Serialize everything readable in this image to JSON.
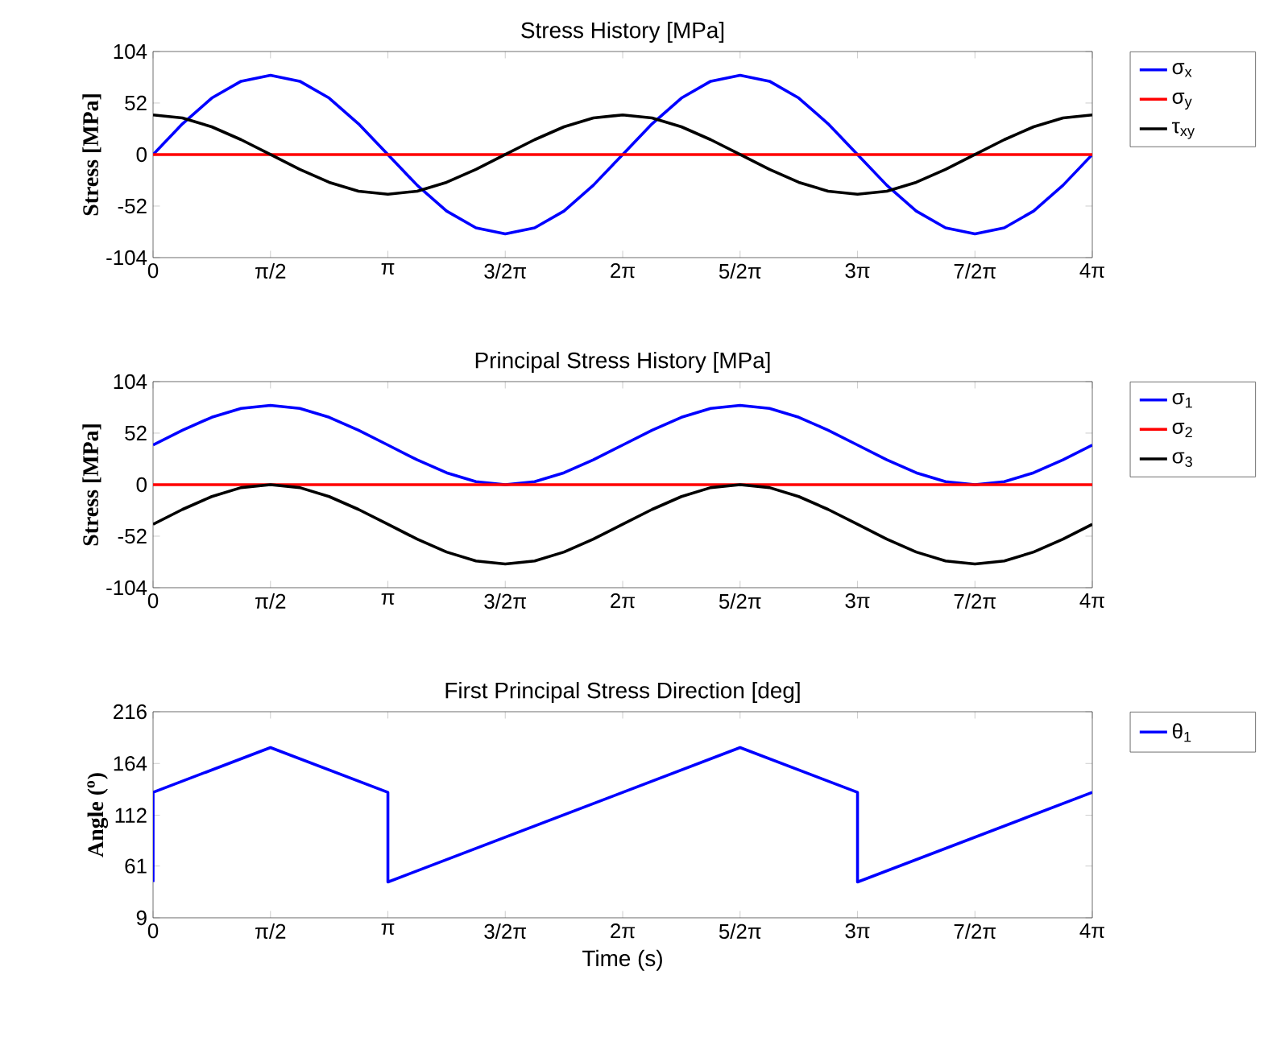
{
  "chart_data": [
    {
      "type": "line",
      "title": "Stress History [MPa]",
      "ylabel": "Stress [MPa]",
      "xlim": [
        0,
        12.566
      ],
      "ylim": [
        -104,
        104
      ],
      "yticks": [
        -104,
        -52,
        0,
        52,
        104
      ],
      "xticks": [
        {
          "value": 0,
          "label": "0"
        },
        {
          "value": 1.571,
          "label": "π/2"
        },
        {
          "value": 3.142,
          "label": "π"
        },
        {
          "value": 4.712,
          "label": "3/2π"
        },
        {
          "value": 6.283,
          "label": "2π"
        },
        {
          "value": 7.854,
          "label": "5/2π"
        },
        {
          "value": 9.425,
          "label": "3π"
        },
        {
          "value": 10.996,
          "label": "7/2π"
        },
        {
          "value": 12.566,
          "label": "4π"
        }
      ],
      "legend": "right",
      "grid": false,
      "series": [
        {
          "name": "σ$_{x}$",
          "color": "#0000ff",
          "x": [
            0,
            0.393,
            0.785,
            1.178,
            1.571,
            1.963,
            2.356,
            2.749,
            3.142,
            3.534,
            3.927,
            4.32,
            4.712,
            5.105,
            5.498,
            5.89,
            6.283,
            6.676,
            7.069,
            7.461,
            7.854,
            8.247,
            8.639,
            9.032,
            9.425,
            9.817,
            10.21,
            10.603,
            10.996,
            11.388,
            11.781,
            12.174,
            12.566
          ],
          "values": [
            0,
            31,
            57,
            74,
            80,
            74,
            57,
            31,
            0,
            -31,
            -57,
            -74,
            -80,
            -74,
            -57,
            -31,
            0,
            31,
            57,
            74,
            80,
            74,
            57,
            31,
            0,
            -31,
            -57,
            -74,
            -80,
            -74,
            -57,
            -31,
            0
          ]
        },
        {
          "name": "σ$_{y}$",
          "color": "#ff0000",
          "x": [
            0,
            12.566
          ],
          "values": [
            0,
            0
          ]
        },
        {
          "name": "τ$_{xy}$",
          "color": "#000000",
          "x": [
            0,
            0.393,
            0.785,
            1.178,
            1.571,
            1.963,
            2.356,
            2.749,
            3.142,
            3.534,
            3.927,
            4.32,
            4.712,
            5.105,
            5.498,
            5.89,
            6.283,
            6.676,
            7.069,
            7.461,
            7.854,
            8.247,
            8.639,
            9.032,
            9.425,
            9.817,
            10.21,
            10.603,
            10.996,
            11.388,
            11.781,
            12.174,
            12.566
          ],
          "values": [
            40,
            37,
            28,
            15,
            0,
            -15,
            -28,
            -37,
            -40,
            -37,
            -28,
            -15,
            0,
            15,
            28,
            37,
            40,
            37,
            28,
            15,
            0,
            -15,
            -28,
            -37,
            -40,
            -37,
            -28,
            -15,
            0,
            15,
            28,
            37,
            40
          ]
        }
      ]
    },
    {
      "type": "line",
      "title": "Principal Stress History [MPa]",
      "ylabel": "Stress [MPa]",
      "xlim": [
        0,
        12.566
      ],
      "ylim": [
        -104,
        104
      ],
      "yticks": [
        -104,
        -52,
        0,
        52,
        104
      ],
      "xticks": [
        {
          "value": 0,
          "label": "0"
        },
        {
          "value": 1.571,
          "label": "π/2"
        },
        {
          "value": 3.142,
          "label": "π"
        },
        {
          "value": 4.712,
          "label": "3/2π"
        },
        {
          "value": 6.283,
          "label": "2π"
        },
        {
          "value": 7.854,
          "label": "5/2π"
        },
        {
          "value": 9.425,
          "label": "3π"
        },
        {
          "value": 10.996,
          "label": "7/2π"
        },
        {
          "value": 12.566,
          "label": "4π"
        }
      ],
      "legend": "right",
      "grid": false,
      "series": [
        {
          "name": "σ$_{1}$",
          "color": "#0000ff",
          "x": [
            0,
            0.393,
            0.785,
            1.178,
            1.571,
            1.963,
            2.356,
            2.749,
            3.142,
            3.534,
            3.927,
            4.32,
            4.712,
            5.105,
            5.498,
            5.89,
            6.283,
            6.676,
            7.069,
            7.461,
            7.854,
            8.247,
            8.639,
            9.032,
            9.425,
            9.817,
            10.21,
            10.603,
            10.996,
            11.388,
            11.781,
            12.174,
            12.566
          ],
          "values": [
            40,
            55,
            68,
            77,
            80,
            77,
            68,
            55,
            40,
            25,
            12,
            3,
            0,
            3,
            12,
            25,
            40,
            55,
            68,
            77,
            80,
            77,
            68,
            55,
            40,
            25,
            12,
            3,
            0,
            3,
            12,
            25,
            40
          ]
        },
        {
          "name": "σ$_{2}$",
          "color": "#ff0000",
          "x": [
            0,
            12.566
          ],
          "values": [
            0,
            0
          ]
        },
        {
          "name": "σ$_{3}$",
          "color": "#000000",
          "x": [
            0,
            0.393,
            0.785,
            1.178,
            1.571,
            1.963,
            2.356,
            2.749,
            3.142,
            3.534,
            3.927,
            4.32,
            4.712,
            5.105,
            5.498,
            5.89,
            6.283,
            6.676,
            7.069,
            7.461,
            7.854,
            8.247,
            8.639,
            9.032,
            9.425,
            9.817,
            10.21,
            10.603,
            10.996,
            11.388,
            11.781,
            12.174,
            12.566
          ],
          "values": [
            -40,
            -25,
            -12,
            -3,
            0,
            -3,
            -12,
            -25,
            -40,
            -55,
            -68,
            -77,
            -80,
            -77,
            -68,
            -55,
            -40,
            -25,
            -12,
            -3,
            0,
            -3,
            -12,
            -25,
            -40,
            -55,
            -68,
            -77,
            -80,
            -77,
            -68,
            -55,
            -40
          ]
        }
      ]
    },
    {
      "type": "line",
      "title": "First Principal Stress Direction [deg]",
      "xlabel": "Time (s)",
      "ylabel": "Angle ($^{o}$)",
      "xlim": [
        0,
        12.566
      ],
      "ylim": [
        9,
        216
      ],
      "yticks": [
        9,
        61,
        112,
        164,
        216
      ],
      "xticks": [
        {
          "value": 0,
          "label": "0"
        },
        {
          "value": 1.571,
          "label": "π/2"
        },
        {
          "value": 3.142,
          "label": "π"
        },
        {
          "value": 4.712,
          "label": "3/2π"
        },
        {
          "value": 6.283,
          "label": "2π"
        },
        {
          "value": 7.854,
          "label": "5/2π"
        },
        {
          "value": 9.425,
          "label": "3π"
        },
        {
          "value": 10.996,
          "label": "7/2π"
        },
        {
          "value": 12.566,
          "label": "4π"
        }
      ],
      "legend": "right",
      "grid": false,
      "series": [
        {
          "name": "θ$_{1}$",
          "color": "#0000ff",
          "x": [
            0,
            0,
            1.571,
            3.142,
            3.142,
            7.854,
            9.425,
            9.425,
            12.566
          ],
          "values": [
            45,
            135,
            180,
            135,
            45,
            180,
            135,
            45,
            135
          ]
        }
      ]
    }
  ]
}
